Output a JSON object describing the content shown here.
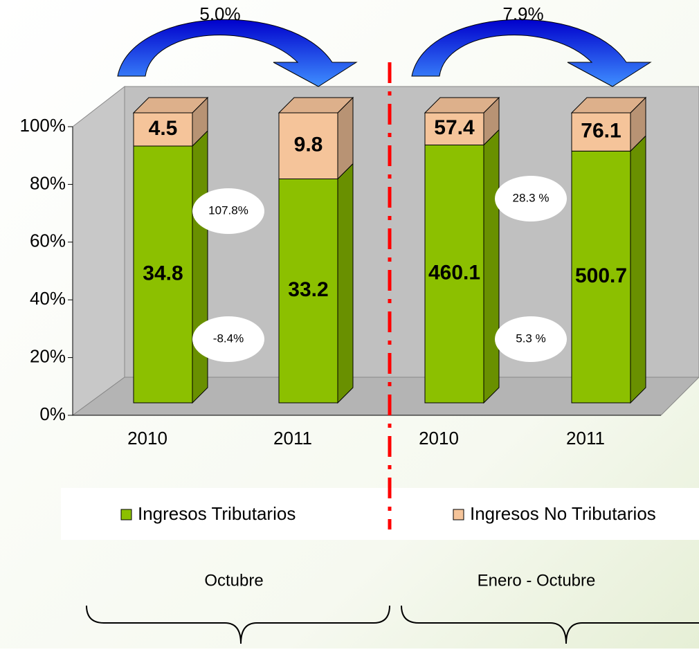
{
  "chart_data": {
    "type": "stacked_percent_bar",
    "categories": [
      "2010",
      "2011",
      "2010",
      "2011"
    ],
    "series": [
      {
        "name": "Ingresos Tributarios",
        "color": "#8cc000",
        "values": [
          34.8,
          33.2,
          460.1,
          500.7
        ]
      },
      {
        "name": "Ingresos No Tributarios",
        "color": "#f5c49a",
        "values": [
          4.5,
          9.8,
          57.4,
          76.1
        ]
      }
    ],
    "ylim": [
      0,
      100
    ],
    "yticks": [
      {
        "value": 0,
        "label": "0%"
      },
      {
        "value": 20,
        "label": "20%"
      },
      {
        "value": 40,
        "label": "40%"
      },
      {
        "value": 60,
        "label": "60%"
      },
      {
        "value": 80,
        "label": "80%"
      },
      {
        "value": 100,
        "label": "100%"
      }
    ],
    "annotations": {
      "growth": [
        "5.0%",
        "7.9%"
      ],
      "no_tributarios_change": [
        "107.8%",
        "28.3 %"
      ],
      "tributarios_change": [
        "-8.4%",
        "5.3 %"
      ],
      "periods": [
        "Octubre",
        "Enero - Octubre"
      ]
    }
  }
}
